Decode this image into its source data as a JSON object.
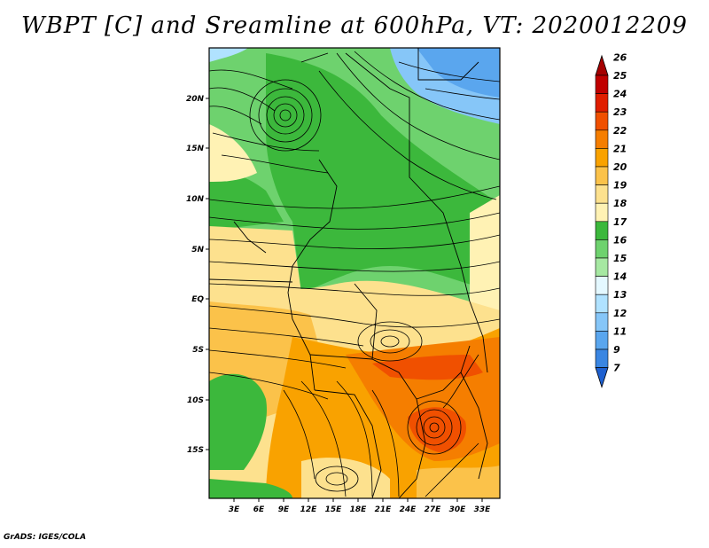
{
  "title": "WBPT [C] and Sreamline at 600hPa, VT: 2020012209",
  "credit": "GrADS: IGES/COLA",
  "map": {
    "lat_labels": [
      "20N",
      "15N",
      "10N",
      "5N",
      "EQ",
      "5S",
      "10S",
      "15S"
    ],
    "lon_labels": [
      "3E",
      "6E",
      "9E",
      "12E",
      "15E",
      "18E",
      "21E",
      "24E",
      "27E",
      "30E",
      "33E"
    ]
  },
  "colorbar": {
    "labels": [
      "26",
      "25",
      "24",
      "23",
      "22",
      "21",
      "20",
      "19",
      "18",
      "17",
      "16",
      "15",
      "14",
      "13",
      "12",
      "11",
      "9",
      "7"
    ],
    "colors": [
      "#a50000",
      "#c00000",
      "#e01e00",
      "#f05000",
      "#f57e00",
      "#f9a200",
      "#fbc24a",
      "#fde18e",
      "#fff2b4",
      "#3cb83c",
      "#6ed26e",
      "#a6e8a2",
      "#e4f8ff",
      "#b0e2ff",
      "#86c6f8",
      "#5aa6ee",
      "#3a86e2",
      "#1e60d0"
    ]
  }
}
